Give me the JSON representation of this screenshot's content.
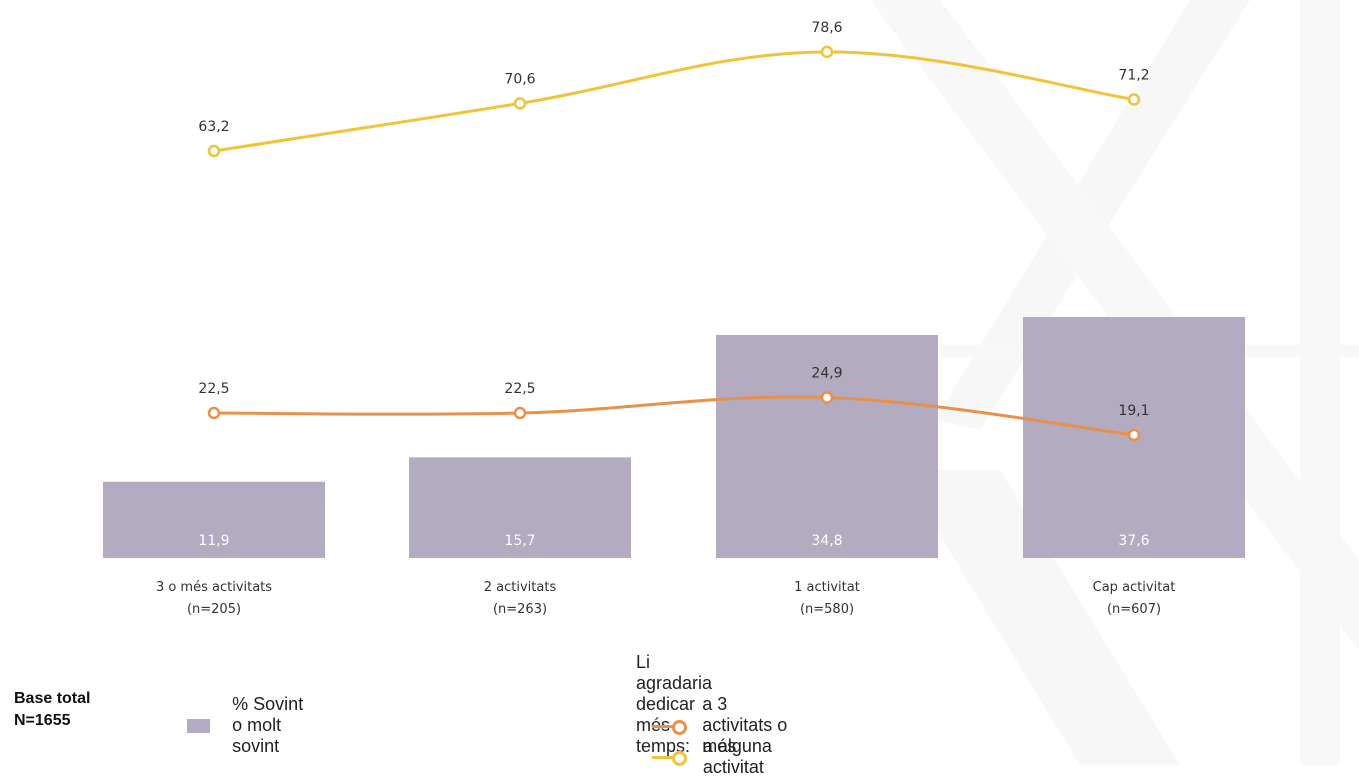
{
  "chart_data": {
    "type": "bar",
    "categories": [
      "3 o més activitats",
      "2 activitats",
      "1 activitat",
      "Cap activitat"
    ],
    "category_counts": [
      "(n=205)",
      "(n=263)",
      "(n=580)",
      "(n=607)"
    ],
    "bar_series": {
      "name": "% Sovint o molt sovint",
      "values": [
        11.9,
        15.7,
        34.8,
        37.6
      ],
      "labels": [
        "11,9",
        "15,7",
        "34,8",
        "37,6"
      ],
      "color": "#b3abbf"
    },
    "line_series": [
      {
        "name": "a 3 activitats o més",
        "values": [
          22.5,
          22.5,
          24.9,
          19.1
        ],
        "labels": [
          "22,5",
          "22,5",
          "24,9",
          "19,1"
        ],
        "color": "#e8914a"
      },
      {
        "name": "a alguna activitat",
        "values": [
          63.2,
          70.6,
          78.6,
          71.2
        ],
        "labels": [
          "63,2",
          "70,6",
          "78,6",
          "71,2"
        ],
        "color": "#f0c43a"
      }
    ],
    "line_legend_title": "Li agradaria dedicar més temps:",
    "base_total": [
      "Base total",
      "N=1655"
    ],
    "bar_scale_max": 60,
    "line_scale": [
      15,
      85
    ],
    "grid": false,
    "legend_position": "bottom"
  }
}
